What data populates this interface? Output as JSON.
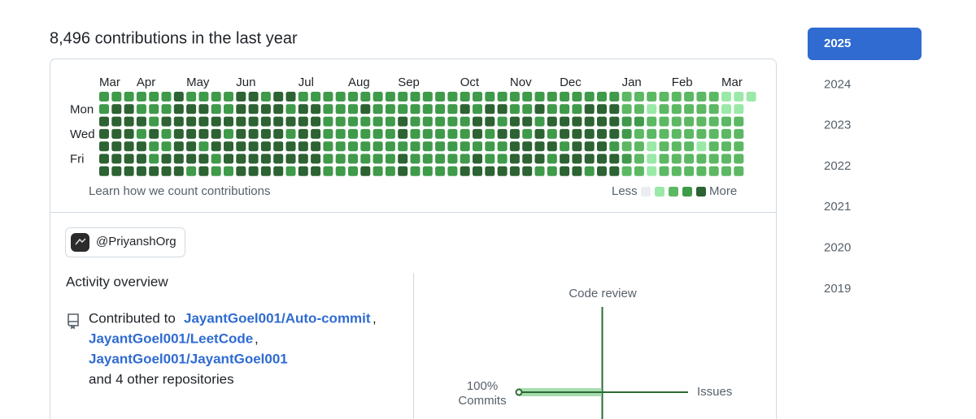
{
  "header": {
    "title": "8,496 contributions in the last year"
  },
  "grid": {
    "months": [
      "Mar",
      "Apr",
      "May",
      "Jun",
      "Jul",
      "Aug",
      "Sep",
      "Oct",
      "Nov",
      "Dec",
      "Jan",
      "Feb",
      "Mar"
    ],
    "days": [
      "Mon",
      "Wed",
      "Fri"
    ],
    "colors": [
      "#ebedf0",
      "#9be9a8",
      "#5cb863",
      "#3f9a4a",
      "#2d6233"
    ],
    "levels": [
      [
        3,
        3,
        3,
        3,
        3,
        3,
        4,
        3,
        3,
        3,
        3,
        4,
        4,
        3,
        4,
        4,
        3,
        3,
        3,
        3,
        3,
        3,
        3,
        3,
        3,
        3,
        3,
        3,
        3,
        3,
        3,
        3,
        3,
        3,
        3,
        3,
        3,
        3,
        3,
        3,
        3,
        3,
        2,
        2,
        2,
        2,
        2,
        2,
        2,
        2,
        1,
        1,
        1
      ],
      [
        3,
        4,
        4,
        3,
        3,
        3,
        4,
        4,
        4,
        3,
        3,
        4,
        4,
        4,
        4,
        3,
        4,
        4,
        3,
        3,
        3,
        4,
        3,
        3,
        3,
        3,
        3,
        3,
        3,
        4,
        3,
        4,
        4,
        3,
        3,
        4,
        3,
        3,
        3,
        4,
        4,
        4,
        2,
        2,
        1,
        2,
        2,
        2,
        2,
        2,
        1,
        1,
        null
      ],
      [
        4,
        4,
        4,
        4,
        3,
        4,
        4,
        4,
        4,
        4,
        4,
        4,
        4,
        4,
        4,
        4,
        4,
        4,
        3,
        3,
        3,
        3,
        3,
        3,
        4,
        3,
        3,
        3,
        3,
        3,
        4,
        4,
        3,
        4,
        4,
        3,
        4,
        4,
        4,
        4,
        4,
        4,
        3,
        3,
        2,
        2,
        2,
        2,
        2,
        2,
        2,
        2,
        null
      ],
      [
        4,
        4,
        4,
        3,
        4,
        3,
        4,
        4,
        4,
        4,
        3,
        4,
        4,
        4,
        4,
        3,
        4,
        4,
        3,
        3,
        3,
        3,
        3,
        3,
        4,
        3,
        3,
        3,
        3,
        3,
        4,
        3,
        4,
        4,
        3,
        4,
        3,
        4,
        4,
        4,
        4,
        4,
        3,
        2,
        2,
        2,
        2,
        2,
        2,
        2,
        2,
        2,
        null
      ],
      [
        4,
        4,
        4,
        4,
        3,
        3,
        4,
        4,
        3,
        4,
        4,
        4,
        4,
        4,
        4,
        4,
        4,
        4,
        3,
        3,
        3,
        3,
        3,
        3,
        3,
        3,
        3,
        3,
        3,
        3,
        3,
        3,
        3,
        4,
        4,
        4,
        4,
        3,
        4,
        4,
        4,
        3,
        2,
        2,
        1,
        2,
        2,
        2,
        1,
        2,
        2,
        2,
        null
      ],
      [
        4,
        4,
        4,
        4,
        3,
        4,
        4,
        4,
        4,
        3,
        4,
        4,
        4,
        4,
        4,
        4,
        4,
        4,
        3,
        3,
        3,
        3,
        3,
        3,
        4,
        3,
        3,
        3,
        3,
        3,
        4,
        3,
        3,
        4,
        4,
        4,
        3,
        4,
        4,
        4,
        4,
        4,
        3,
        2,
        1,
        2,
        2,
        2,
        2,
        2,
        2,
        2,
        null
      ],
      [
        4,
        4,
        4,
        4,
        4,
        4,
        4,
        3,
        4,
        3,
        3,
        4,
        4,
        4,
        4,
        3,
        4,
        4,
        3,
        3,
        3,
        4,
        3,
        3,
        4,
        3,
        3,
        3,
        3,
        4,
        4,
        4,
        4,
        4,
        4,
        3,
        3,
        4,
        4,
        3,
        4,
        4,
        2,
        2,
        1,
        2,
        2,
        2,
        2,
        2,
        2,
        2,
        null
      ]
    ],
    "learn_link": "Learn how we count contributions",
    "legend_less": "Less",
    "legend_more": "More"
  },
  "org": {
    "handle": "@PriyanshOrg"
  },
  "activity": {
    "title": "Activity overview",
    "intro": "Contributed to",
    "repos": [
      "JayantGoel001/Auto-commit",
      "JayantGoel001/LeetCode",
      "JayantGoel001/JayantGoel001"
    ],
    "repo_separator": ",",
    "more": "and 4 other repositories",
    "chart": {
      "top": "Code review",
      "right": "Issues",
      "left": "Commits",
      "left_value": 100,
      "left_value_label": "100%"
    }
  },
  "years": [
    {
      "label": "2025",
      "selected": true
    },
    {
      "label": "2024"
    },
    {
      "label": "2023"
    },
    {
      "label": "2022"
    },
    {
      "label": "2021"
    },
    {
      "label": "2020"
    },
    {
      "label": "2019"
    }
  ]
}
